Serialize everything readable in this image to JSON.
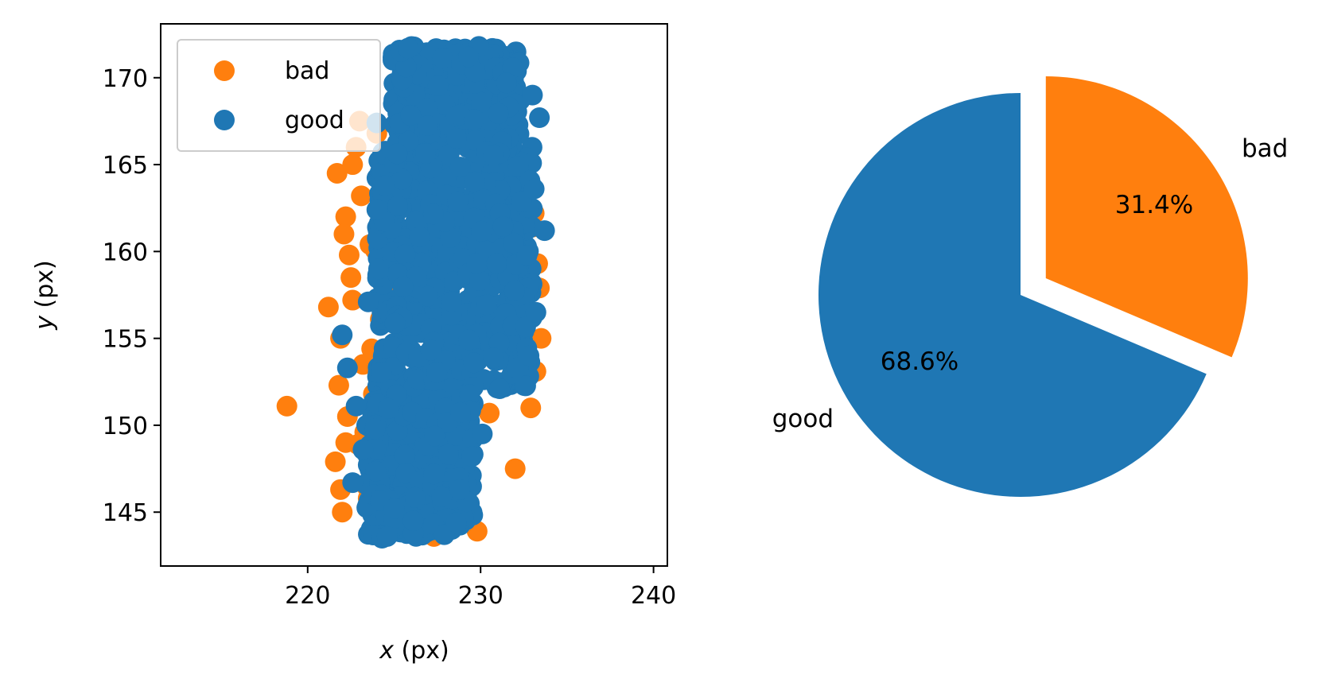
{
  "colors": {
    "good": "#1f77b4",
    "bad": "#ff7f0e",
    "axes": "#000000",
    "background": "#ffffff",
    "legend_border": "#cccccc"
  },
  "chart_data": [
    {
      "type": "scatter",
      "title": "",
      "xlabel": "x",
      "xlabel_unit": " (px)",
      "ylabel": "y",
      "ylabel_unit": " (px)",
      "xlim": [
        211.5,
        240.8
      ],
      "ylim": [
        141.9,
        173.1
      ],
      "xticks": [
        220,
        230,
        240
      ],
      "yticks": [
        145,
        150,
        155,
        160,
        165,
        170
      ],
      "grid": false,
      "legend": {
        "placement": "upper-left",
        "entries": [
          "bad",
          "good"
        ]
      },
      "series": [
        {
          "name": "bad",
          "color": "#ff7f0e",
          "x": [
            218.8,
            221.2,
            221.6,
            221.9,
            222.0,
            221.7,
            222.2,
            221.8,
            222.3,
            221.9,
            222.5,
            222.1,
            222.8,
            222.4,
            223.0,
            222.6,
            223.2,
            222.9,
            223.5,
            223.1,
            223.7,
            223.3,
            224.0,
            223.6,
            224.2,
            223.8,
            224.5,
            226.0,
            226.5,
            227.3,
            227.6,
            228.2,
            229.0,
            229.5,
            230.2,
            231.0,
            231.6,
            232.2,
            232.7,
            233.1,
            233.3,
            233.5,
            233.2,
            232.9,
            233.4,
            233.0,
            225.5,
            226.8,
            228.5,
            230.5,
            232.0,
            224.8,
            227.0,
            229.8,
            222.6,
            223.9,
            222.2,
            223.4,
            224.4,
            225.2
          ],
          "y": [
            151.1,
            156.8,
            147.9,
            146.3,
            145.0,
            164.5,
            162.0,
            152.3,
            150.5,
            155.0,
            158.5,
            161.0,
            166.0,
            159.8,
            167.5,
            157.2,
            153.5,
            148.9,
            145.8,
            163.2,
            154.4,
            149.6,
            166.8,
            160.4,
            156.1,
            151.8,
            147.2,
            143.8,
            144.5,
            143.6,
            169.8,
            170.3,
            170.1,
            169.5,
            168.9,
            168.2,
            167.0,
            165.5,
            164.0,
            162.2,
            159.3,
            155.0,
            153.1,
            151.0,
            157.9,
            161.4,
            170.0,
            170.5,
            169.9,
            150.7,
            147.5,
            144.9,
            145.3,
            143.9,
            165.0,
            160.1,
            149.0,
            146.5,
            162.8,
            158.0
          ]
        },
        {
          "name": "good",
          "color": "#1f77b4"
        }
      ]
    },
    {
      "type": "pie",
      "title": "",
      "slices": [
        {
          "label": "good",
          "value": 68.6,
          "pct_label": "68.6%",
          "color": "#1f77b4",
          "explode": 0.0
        },
        {
          "label": "bad",
          "value": 31.4,
          "pct_label": "31.4%",
          "color": "#ff7f0e",
          "explode": 0.15
        }
      ]
    }
  ]
}
